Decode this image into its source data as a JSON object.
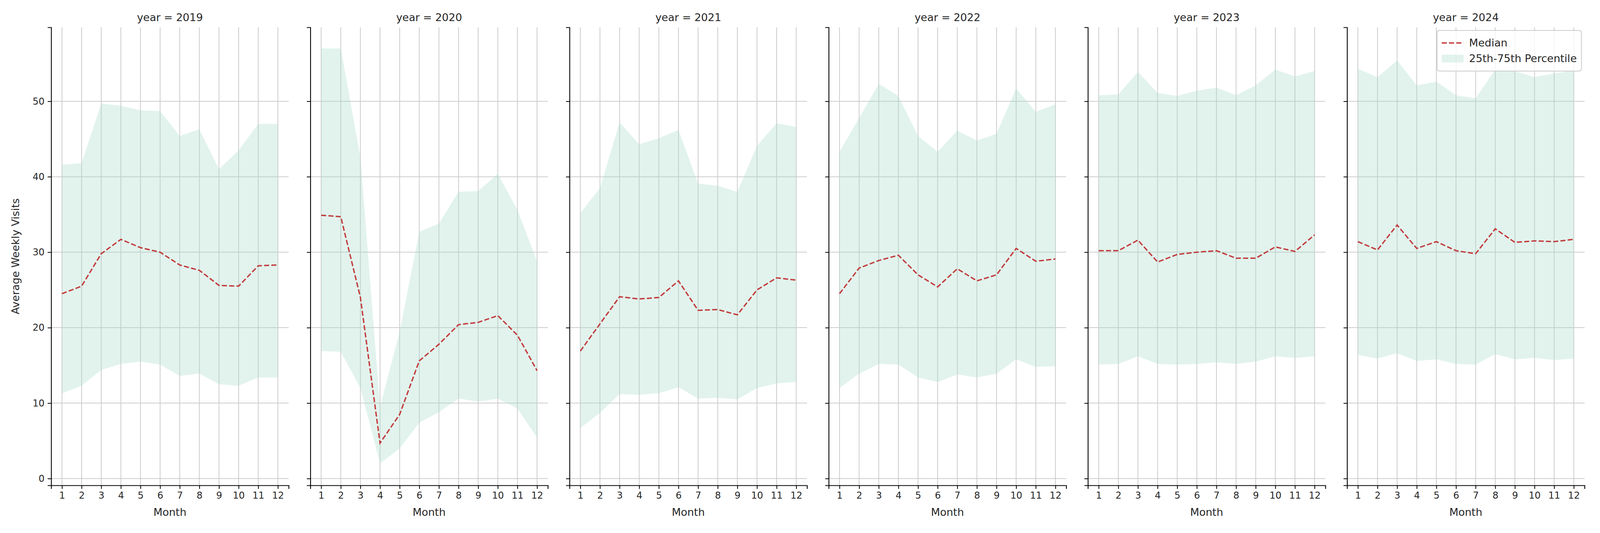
{
  "chart_data": [
    {
      "type": "line",
      "title": "year = 2019",
      "x_label": "Month",
      "y_label": "Average Weekly Visits",
      "x": [
        1,
        2,
        3,
        4,
        5,
        6,
        7,
        8,
        9,
        10,
        11,
        12
      ],
      "xlim": [
        0.45,
        12.55
      ],
      "xticks": [
        1,
        2,
        3,
        4,
        5,
        6,
        7,
        8,
        9,
        10,
        11,
        12
      ],
      "ylim": [
        -0.9,
        59.8
      ],
      "yticks": [
        0,
        10,
        20,
        30,
        40,
        50
      ],
      "grid": true,
      "series": [
        {
          "type": "line",
          "color": "#c23b3b",
          "line_style": "dashed",
          "values": [
            24.5,
            25.5,
            29.8,
            31.7,
            30.6,
            30.0,
            28.3,
            27.6,
            25.6,
            25.5,
            28.2,
            28.3
          ]
        },
        {
          "type": "area",
          "color": "#a6dcc9",
          "lower": [
            11.3,
            12.3,
            14.4,
            15.2,
            15.5,
            15.1,
            13.6,
            13.9,
            12.5,
            12.3,
            13.4,
            13.4
          ],
          "upper": [
            41.6,
            41.8,
            49.7,
            49.4,
            48.8,
            48.7,
            45.4,
            46.3,
            41.0,
            43.5,
            47.0,
            47.0
          ]
        }
      ]
    },
    {
      "type": "line",
      "title": "year = 2020",
      "x_label": "Month",
      "x": [
        1,
        2,
        3,
        4,
        5,
        6,
        7,
        8,
        9,
        10,
        11,
        12
      ],
      "xlim": [
        0.45,
        12.55
      ],
      "xticks": [
        1,
        2,
        3,
        4,
        5,
        6,
        7,
        8,
        9,
        10,
        11,
        12
      ],
      "ylim": [
        -0.9,
        59.8
      ],
      "yticks": [
        0,
        10,
        20,
        30,
        40,
        50
      ],
      "grid": true,
      "tick_labels": "x",
      "series": [
        {
          "type": "line",
          "color": "#c23b3b",
          "line_style": "dashed",
          "values": [
            34.9,
            34.7,
            24.0,
            4.7,
            8.5,
            15.6,
            17.8,
            20.4,
            20.7,
            21.6,
            19.0,
            14.3
          ]
        },
        {
          "type": "area",
          "color": "#a6dcc9",
          "lower": [
            16.9,
            16.8,
            12.0,
            2.0,
            4.0,
            7.4,
            8.8,
            10.6,
            10.2,
            10.6,
            9.3,
            5.4
          ],
          "upper": [
            57.0,
            57.0,
            42.6,
            9.5,
            19.5,
            32.7,
            33.8,
            38.0,
            38.1,
            40.4,
            35.6,
            28.8
          ]
        }
      ]
    },
    {
      "type": "line",
      "title": "year = 2021",
      "x_label": "Month",
      "x": [
        1,
        2,
        3,
        4,
        5,
        6,
        7,
        8,
        9,
        10,
        11,
        12
      ],
      "xlim": [
        0.45,
        12.55
      ],
      "xticks": [
        1,
        2,
        3,
        4,
        5,
        6,
        7,
        8,
        9,
        10,
        11,
        12
      ],
      "ylim": [
        -0.9,
        59.8
      ],
      "yticks": [
        0,
        10,
        20,
        30,
        40,
        50
      ],
      "grid": true,
      "tick_labels": "x",
      "series": [
        {
          "type": "line",
          "color": "#c23b3b",
          "line_style": "dashed",
          "values": [
            16.9,
            20.5,
            24.1,
            23.8,
            24.0,
            26.2,
            22.3,
            22.4,
            21.7,
            25.0,
            26.6,
            26.3
          ]
        },
        {
          "type": "area",
          "color": "#a6dcc9",
          "lower": [
            6.7,
            8.7,
            11.2,
            11.1,
            11.3,
            12.1,
            10.6,
            10.7,
            10.5,
            12.0,
            12.6,
            12.8
          ],
          "upper": [
            35.2,
            38.5,
            47.2,
            44.3,
            45.1,
            46.2,
            39.1,
            38.8,
            38.0,
            44.1,
            47.1,
            46.6
          ]
        }
      ]
    },
    {
      "type": "line",
      "title": "year = 2022",
      "x_label": "Month",
      "x": [
        1,
        2,
        3,
        4,
        5,
        6,
        7,
        8,
        9,
        10,
        11,
        12
      ],
      "xlim": [
        0.45,
        12.55
      ],
      "xticks": [
        1,
        2,
        3,
        4,
        5,
        6,
        7,
        8,
        9,
        10,
        11,
        12
      ],
      "ylim": [
        -0.9,
        59.8
      ],
      "yticks": [
        0,
        10,
        20,
        30,
        40,
        50
      ],
      "grid": true,
      "tick_labels": "x",
      "series": [
        {
          "type": "line",
          "color": "#c23b3b",
          "line_style": "dashed",
          "values": [
            24.5,
            27.9,
            28.9,
            29.6,
            27.0,
            25.4,
            27.8,
            26.2,
            27.0,
            30.5,
            28.8,
            29.1
          ]
        },
        {
          "type": "area",
          "color": "#a6dcc9",
          "lower": [
            12.0,
            13.9,
            15.2,
            15.1,
            13.4,
            12.8,
            13.8,
            13.4,
            13.9,
            15.8,
            14.8,
            14.9
          ],
          "upper": [
            43.3,
            47.8,
            52.3,
            50.7,
            45.4,
            43.3,
            46.1,
            44.8,
            45.7,
            51.7,
            48.6,
            49.6
          ]
        }
      ]
    },
    {
      "type": "line",
      "title": "year = 2023",
      "x_label": "Month",
      "x": [
        1,
        2,
        3,
        4,
        5,
        6,
        7,
        8,
        9,
        10,
        11,
        12
      ],
      "xlim": [
        0.45,
        12.55
      ],
      "xticks": [
        1,
        2,
        3,
        4,
        5,
        6,
        7,
        8,
        9,
        10,
        11,
        12
      ],
      "ylim": [
        -0.9,
        59.8
      ],
      "yticks": [
        0,
        10,
        20,
        30,
        40,
        50
      ],
      "grid": true,
      "tick_labels": "x",
      "series": [
        {
          "type": "line",
          "color": "#c23b3b",
          "line_style": "dashed",
          "values": [
            30.2,
            30.2,
            31.6,
            28.7,
            29.7,
            30.0,
            30.2,
            29.2,
            29.2,
            30.7,
            30.1,
            32.3
          ]
        },
        {
          "type": "area",
          "color": "#a6dcc9",
          "lower": [
            15.1,
            15.2,
            16.2,
            15.2,
            15.1,
            15.2,
            15.4,
            15.2,
            15.5,
            16.2,
            16.0,
            16.2
          ],
          "upper": [
            50.8,
            50.9,
            53.9,
            51.1,
            50.7,
            51.4,
            51.8,
            50.8,
            52.1,
            54.2,
            53.3,
            54.0
          ]
        }
      ]
    },
    {
      "type": "line",
      "title": "year = 2024",
      "x_label": "Month",
      "x": [
        1,
        2,
        3,
        4,
        5,
        6,
        7,
        8,
        9,
        10,
        11,
        12
      ],
      "xlim": [
        0.45,
        12.55
      ],
      "xticks": [
        1,
        2,
        3,
        4,
        5,
        6,
        7,
        8,
        9,
        10,
        11,
        12
      ],
      "ylim": [
        -0.9,
        59.8
      ],
      "yticks": [
        0,
        10,
        20,
        30,
        40,
        50
      ],
      "grid": true,
      "tick_labels": "x",
      "legend": "upper right",
      "series": [
        {
          "type": "line",
          "name": "Median",
          "color": "#c23b3b",
          "line_style": "dashed",
          "values": [
            31.4,
            30.3,
            33.6,
            30.5,
            31.4,
            30.2,
            29.8,
            33.1,
            31.3,
            31.5,
            31.4,
            31.7
          ]
        },
        {
          "type": "area",
          "name": "25th-75th Percentile",
          "color": "#a6dcc9",
          "lower": [
            16.4,
            15.9,
            16.6,
            15.6,
            15.8,
            15.2,
            15.1,
            16.5,
            15.8,
            16.0,
            15.7,
            15.9
          ],
          "upper": [
            54.3,
            53.2,
            55.4,
            52.1,
            52.6,
            50.8,
            50.4,
            54.2,
            54.0,
            53.2,
            53.7,
            54.1
          ]
        }
      ]
    }
  ]
}
